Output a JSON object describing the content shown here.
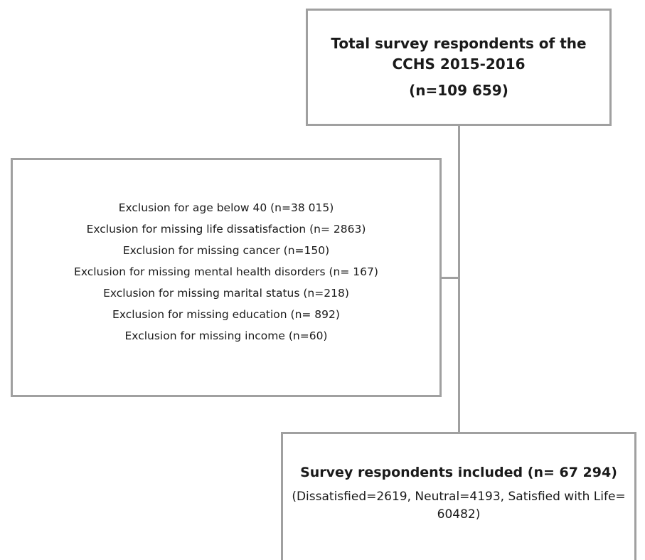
{
  "top_box": {
    "title_line1": "Total survey respondents of the",
    "title_line2": "CCHS 2015-2016",
    "count": "(n=109 659)"
  },
  "exclusion_box": {
    "items": [
      "Exclusion for age below 40 (n=38 015)",
      "Exclusion for missing life dissatisfaction (n= 2863)",
      "Exclusion for missing cancer (n=150)",
      "Exclusion for missing mental health disorders (n= 167)",
      "Exclusion for missing marital status (n=218)",
      "Exclusion for missing education (n= 892)",
      "Exclusion for missing income (n=60)"
    ]
  },
  "included_box": {
    "title": "Survey respondents included (n= 67 294)",
    "breakdown": "(Dissatisfied=2619, Neutral=4193, Satisfied with Life= 60482)"
  }
}
